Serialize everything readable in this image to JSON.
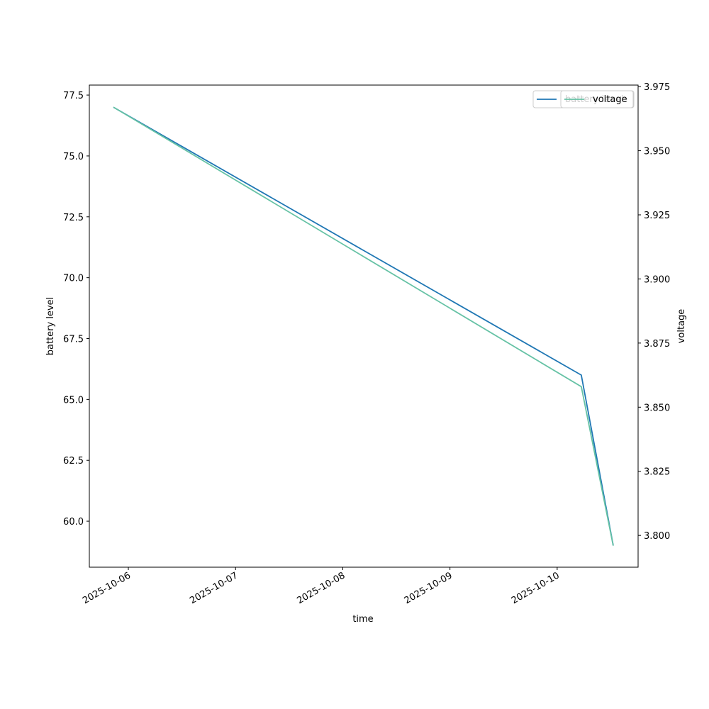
{
  "chart_data": {
    "type": "line",
    "xlabel": "time",
    "ylabel": "battery level",
    "y2label": "voltage",
    "x": [
      "2025-10-05 20:40",
      "2025-10-10 05:24",
      "2025-10-10 12:33"
    ],
    "xlim": [
      "2025-10-05 15:16",
      "2025-10-10 18:07"
    ],
    "xticks": [
      "2025-10-06",
      "2025-10-07",
      "2025-10-08",
      "2025-10-09",
      "2025-10-10"
    ],
    "ylim": [
      58.11,
      77.91
    ],
    "yticks": [
      {
        "value": 60,
        "label": "60.0"
      },
      62.5,
      {
        "value": 65,
        "label": "65.0"
      },
      67.5,
      {
        "value": 70,
        "label": "70.0"
      },
      72.5,
      {
        "value": 75,
        "label": "75.0"
      },
      77.5
    ],
    "y2lim": [
      3.7876,
      3.9756
    ],
    "y2ticks": [
      {
        "value": 3.8,
        "label": "3.800"
      },
      3.825,
      {
        "value": 3.85,
        "label": "3.850"
      },
      3.875,
      {
        "value": 3.9,
        "label": "3.900"
      },
      3.925,
      {
        "value": 3.95,
        "label": "3.950"
      },
      3.975
    ],
    "series": [
      {
        "name": "battery level",
        "color": "#1f77b4",
        "values": [
          77,
          66,
          59
        ]
      },
      {
        "name": "voltage",
        "color": "#66c2a5",
        "axis": "y2",
        "values": [
          3.967,
          3.858,
          3.796
        ]
      }
    ],
    "legend": "upper right"
  }
}
